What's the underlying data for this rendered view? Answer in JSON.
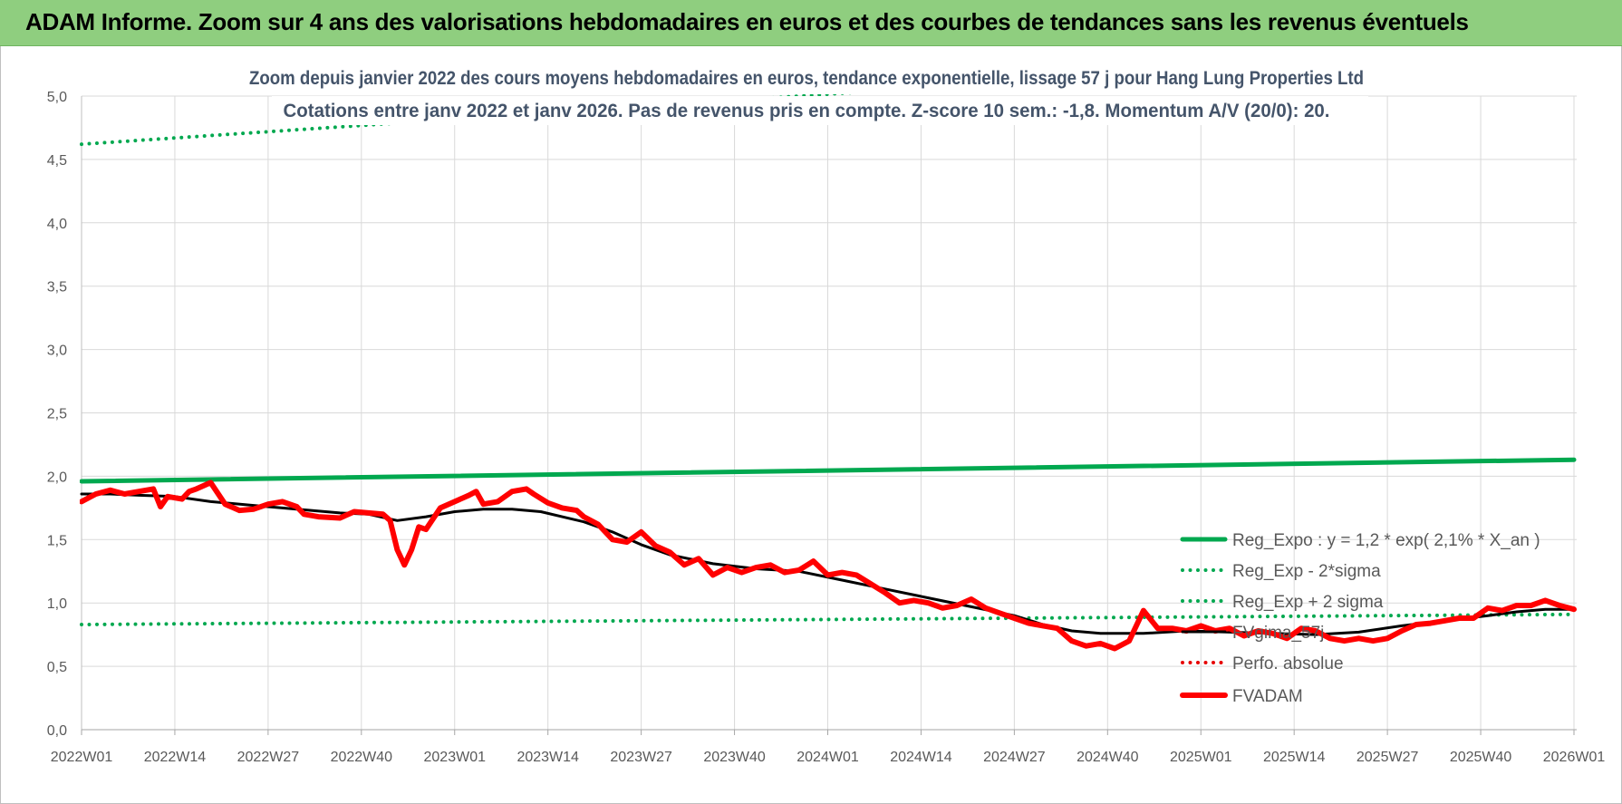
{
  "banner": {
    "title": "ADAM Informe. Zoom sur 4 ans des valorisations hebdomadaires en euros et des courbes de tendances sans les revenus éventuels"
  },
  "chart_data": {
    "type": "line",
    "title": "Zoom depuis janvier 2022 des cours moyens hebdomadaires en euros, tendance exponentielle, lissage 57 j pour Hang Lung Properties Ltd",
    "subtitle": "Cotations entre janv 2022 et janv 2026. Pas de revenus pris en compte. Z-score 10 sem.: -1,8. Momentum A/V (20/0): 20.",
    "xlabel": "",
    "ylabel": "",
    "ylim": [
      0,
      5
    ],
    "yticks": [
      "0,0",
      "0,5",
      "1,0",
      "1,5",
      "2,0",
      "2,5",
      "3,0",
      "3,5",
      "4,0",
      "4,5",
      "5,0"
    ],
    "categories": [
      "2022W01",
      "2022W14",
      "2022W27",
      "2022W40",
      "2023W01",
      "2023W14",
      "2023W27",
      "2023W40",
      "2024W01",
      "2024W14",
      "2024W27",
      "2024W40",
      "2025W01",
      "2025W14",
      "2025W27",
      "2025W40",
      "2026W01"
    ],
    "grid": true,
    "legend_position": "bottom-right",
    "colors": {
      "reg_expo": "#00a84f",
      "minus_2sigma": "#00a84f",
      "plus_2sigma": "#00a84f",
      "fvgima": "#000000",
      "perfo": "#e60000",
      "fvadam": "#ff0000",
      "grid": "#d9d9d9",
      "axis_text": "#595959",
      "title_text": "#44546a"
    },
    "series": [
      {
        "name": "Reg_Expo : y = 1,2 * exp( 2,1% *  X_an )",
        "style": "solid-thick",
        "x": [
          0,
          208
        ],
        "values": [
          1.96,
          2.13
        ]
      },
      {
        "name": "Reg_Exp - 2*sigma",
        "style": "dotted",
        "x": [
          0,
          208
        ],
        "values": [
          0.83,
          0.91
        ]
      },
      {
        "name": "Reg_Exp + 2 sigma",
        "style": "dotted",
        "x": [
          0,
          208
        ],
        "values": [
          4.62,
          5.41
        ]
      },
      {
        "name": "FVgima_57j",
        "style": "solid",
        "x": [
          0,
          4,
          8,
          13,
          18,
          24,
          30,
          36,
          40,
          44,
          48,
          52,
          56,
          60,
          64,
          70,
          74,
          78,
          82,
          88,
          94,
          100,
          106,
          112,
          118,
          124,
          130,
          134,
          138,
          142,
          148,
          154,
          160,
          166,
          172,
          178,
          184,
          190,
          196,
          200,
          204,
          208
        ],
        "values": [
          1.86,
          1.86,
          1.85,
          1.84,
          1.8,
          1.77,
          1.74,
          1.71,
          1.7,
          1.65,
          1.68,
          1.72,
          1.74,
          1.74,
          1.72,
          1.64,
          1.56,
          1.46,
          1.38,
          1.31,
          1.27,
          1.25,
          1.18,
          1.11,
          1.04,
          0.97,
          0.9,
          0.83,
          0.78,
          0.76,
          0.76,
          0.78,
          0.77,
          0.76,
          0.75,
          0.77,
          0.82,
          0.86,
          0.9,
          0.93,
          0.95,
          0.95
        ]
      },
      {
        "name": "Perfo. absolue",
        "style": "dotted",
        "x": [],
        "values": []
      },
      {
        "name": "FVADAM",
        "style": "solid-thick",
        "x": [
          0,
          2,
          4,
          6,
          8,
          10,
          11,
          12,
          14,
          15,
          16,
          18,
          20,
          22,
          24,
          26,
          28,
          30,
          31,
          33,
          36,
          38,
          40,
          42,
          43,
          44,
          45,
          46,
          47,
          48,
          50,
          52,
          54,
          55,
          56,
          58,
          60,
          62,
          63,
          65,
          67,
          69,
          70,
          72,
          74,
          76,
          78,
          80,
          82,
          84,
          86,
          88,
          90,
          92,
          94,
          96,
          98,
          100,
          102,
          104,
          106,
          108,
          110,
          112,
          114,
          116,
          118,
          120,
          122,
          124,
          126,
          128,
          130,
          132,
          134,
          136,
          138,
          140,
          142,
          144,
          146,
          148,
          150,
          152,
          154,
          156,
          158,
          160,
          162,
          164,
          166,
          168,
          170,
          172,
          174,
          176,
          178,
          180,
          182,
          184,
          186,
          188,
          190,
          192,
          194,
          196,
          198,
          200,
          202,
          204,
          206,
          208
        ],
        "values": [
          1.8,
          1.86,
          1.89,
          1.86,
          1.88,
          1.9,
          1.76,
          1.84,
          1.82,
          1.88,
          1.9,
          1.95,
          1.78,
          1.73,
          1.74,
          1.78,
          1.8,
          1.76,
          1.7,
          1.68,
          1.67,
          1.72,
          1.71,
          1.7,
          1.65,
          1.42,
          1.3,
          1.42,
          1.6,
          1.58,
          1.75,
          1.8,
          1.85,
          1.88,
          1.78,
          1.8,
          1.88,
          1.9,
          1.86,
          1.79,
          1.75,
          1.73,
          1.68,
          1.62,
          1.5,
          1.48,
          1.56,
          1.45,
          1.4,
          1.3,
          1.35,
          1.22,
          1.28,
          1.24,
          1.28,
          1.3,
          1.24,
          1.26,
          1.33,
          1.22,
          1.24,
          1.22,
          1.15,
          1.08,
          1.0,
          1.02,
          1.0,
          0.96,
          0.98,
          1.03,
          0.96,
          0.92,
          0.88,
          0.84,
          0.82,
          0.8,
          0.7,
          0.66,
          0.68,
          0.64,
          0.7,
          0.94,
          0.8,
          0.8,
          0.78,
          0.82,
          0.78,
          0.8,
          0.74,
          0.78,
          0.76,
          0.72,
          0.8,
          0.78,
          0.72,
          0.7,
          0.72,
          0.7,
          0.72,
          0.78,
          0.83,
          0.84,
          0.86,
          0.88,
          0.88,
          0.96,
          0.94,
          0.98,
          0.98,
          1.02,
          0.98,
          0.95
        ]
      }
    ]
  }
}
